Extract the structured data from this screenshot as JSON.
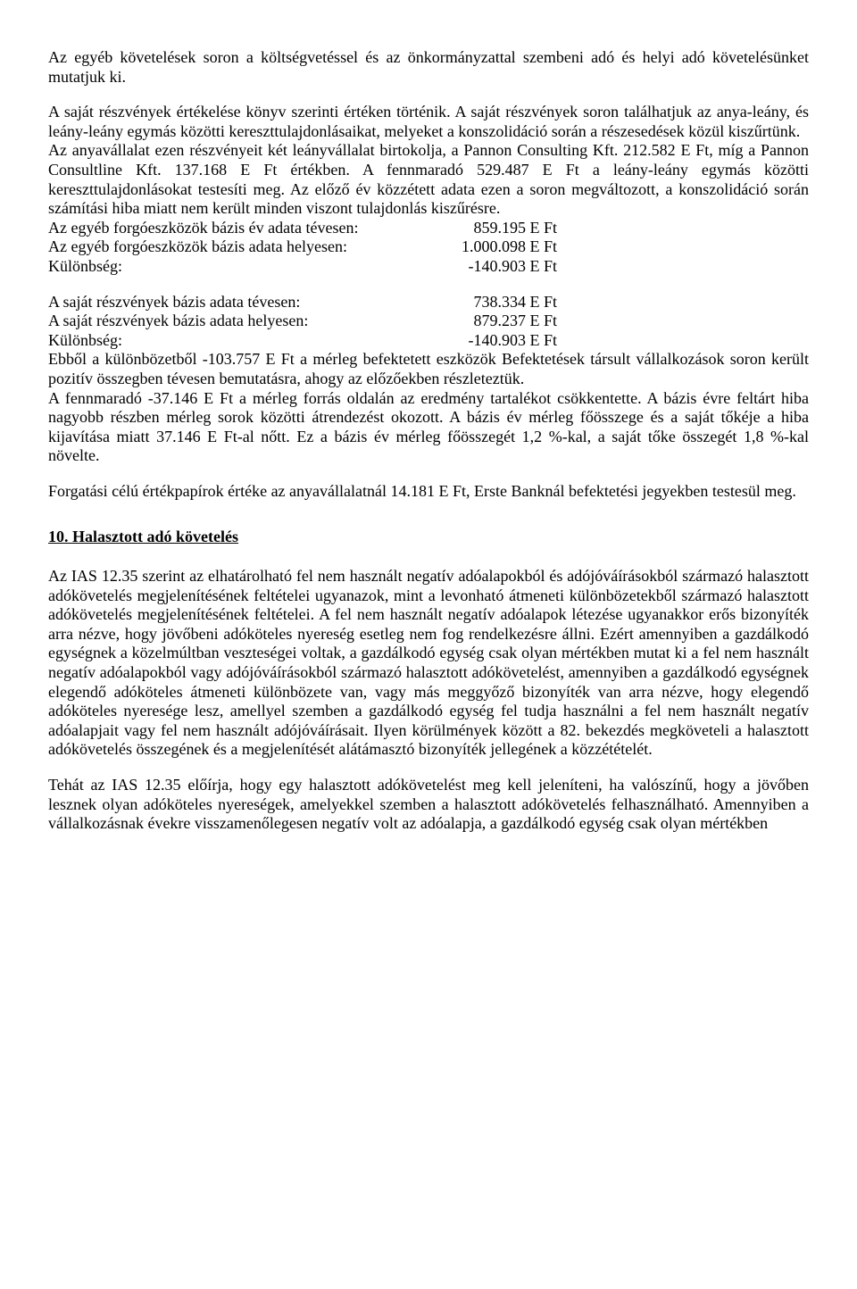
{
  "p1": "Az egyéb követelések soron a költségvetéssel és az önkormányzattal szembeni adó és helyi adó követelésünket mutatjuk ki.",
  "p2": "A saját részvények értékelése könyv szerinti értéken történik. A saját részvények soron találhatjuk az anya-leány, és leány-leány egymás közötti kereszttulajdonlásaikat, melyeket a konszolidáció során a részesedések közül kiszűrtünk.",
  "p3": "Az anyavállalat ezen részvényeit két leányvállalat birtokolja, a Pannon Consulting Kft. 212.582 E Ft, míg a Pannon Consultline Kft. 137.168 E Ft értékben. A fennmaradó 529.487 E Ft a leány-leány egymás közötti kereszttulajdonlásokat testesíti meg. Az előző év közzétett adata ezen a soron megváltozott, a konszolidáció során számítási hiba miatt nem került minden viszont tulajdonlás kiszűrésre.",
  "row1": {
    "label": "Az egyéb forgóeszközök bázis év adata tévesen:",
    "value": "859.195 E Ft"
  },
  "row2": {
    "label": "Az egyéb forgóeszközök bázis adata helyesen:",
    "value": "1.000.098 E Ft"
  },
  "row3": {
    "label": "Különbség:",
    "value": "-140.903 E Ft"
  },
  "row4": {
    "label": "A saját részvények bázis adata tévesen:",
    "value": "738.334 E Ft"
  },
  "row5": {
    "label": "A saját részvények bázis adata helyesen:",
    "value": "879.237 E Ft"
  },
  "row6": {
    "label": "Különbség:",
    "value": "-140.903 E Ft"
  },
  "p4": "Ebből a különbözetből -103.757 E Ft a mérleg befektetett eszközök Befektetések társult vállalkozások soron került pozitív összegben tévesen bemutatásra, ahogy az előzőekben részleteztük.",
  "p5": "A fennmaradó -37.146 E Ft a mérleg forrás oldalán az eredmény tartalékot csökkentette. A bázis évre feltárt hiba nagyobb részben mérleg sorok közötti átrendezést okozott. A bázis év mérleg főösszege és a saját tőkéje a hiba kijavítása miatt 37.146 E Ft-al nőtt. Ez a bázis év mérleg főösszegét 1,2 %-kal, a saját tőke összegét 1,8 %-kal növelte.",
  "p6": "Forgatási célú értékpapírok értéke az anyavállalatnál 14.181 E Ft, Erste Banknál befektetési jegyekben testesül meg.",
  "heading": "10. Halasztott adó követelés",
  "p7": "Az IAS 12.35 szerint az elhatárolható fel nem használt negatív adóalapokból és adójóváírásokból származó halasztott adókövetelés megjelenítésének feltételei ugyanazok, mint a levonható átmeneti különbözetekből származó halasztott adókövetelés megjelenítésének feltételei. A fel nem használt negatív adóalapok létezése ugyanakkor erős bizonyíték arra nézve, hogy jövőbeni adóköteles nyereség esetleg nem fog rendelkezésre állni. Ezért amennyiben a gazdálkodó egységnek a közelmúltban veszteségei voltak, a gazdálkodó egység csak olyan mértékben mutat ki a fel nem használt negatív adóalapokból vagy adójóváírásokból származó halasztott adókövetelést, amennyiben a gazdálkodó egységnek elegendő adóköteles átmeneti különbözete van, vagy más meggyőző bizonyíték van arra nézve, hogy elegendő adóköteles nyeresége lesz, amellyel szemben a gazdálkodó egység fel tudja használni a fel nem használt negatív adóalapjait vagy fel nem használt adójóváírásait. Ilyen körülmények között a 82. bekezdés megköveteli a halasztott adókövetelés összegének és a megjelenítését alátámasztó bizonyíték jellegének a közzétételét.",
  "p8": "Tehát az IAS 12.35 előírja, hogy egy halasztott adókövetelést meg kell jeleníteni, ha valószínű, hogy a jövőben lesznek olyan adóköteles nyereségek, amelyekkel szemben a halasztott adókövetelés felhasználható. Amennyiben a vállalkozásnak évekre visszamenőlegesen negatív volt az adóalapja, a gazdálkodó egység csak olyan mértékben"
}
